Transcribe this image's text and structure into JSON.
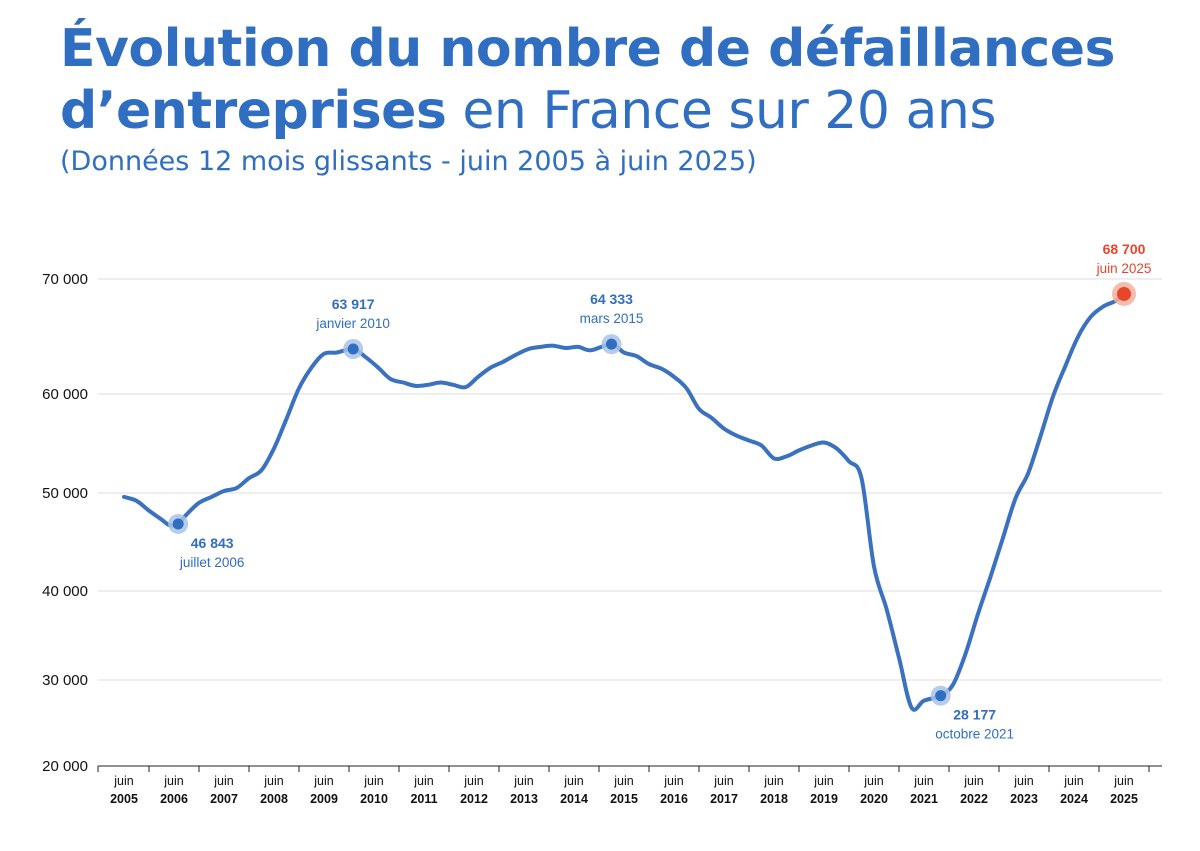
{
  "header": {
    "title_bold_1": "Évolution du nombre de défaillances",
    "title_bold_2": "d’entreprises",
    "title_light_2": " en France sur 20 ans",
    "subtitle": "(Données 12 mois glissants - juin 2005 à juin 2025)"
  },
  "colors": {
    "line": "#3a72bf",
    "title": "#2f6ec1",
    "annotation": "#2f6ec1",
    "latest": "#e8452a",
    "grid": "#dedede",
    "halo": "#a9c3e8",
    "halo_latest": "#f4b29f"
  },
  "chart_data": {
    "type": "line",
    "title": "Évolution du nombre de défaillances d’entreprises en France sur 20 ans",
    "subtitle": "(Données 12 mois glissants - juin 2005 à juin 2025)",
    "xlabel": "",
    "ylabel": "",
    "y_ticks": [
      {
        "value": 20000,
        "label": "20 000"
      },
      {
        "value": 30000,
        "label": "30 000"
      },
      {
        "value": 40000,
        "label": "40 000"
      },
      {
        "value": 50000,
        "label": "50 000"
      },
      {
        "value": 60000,
        "label": "60 000"
      },
      {
        "value": 70000,
        "label": "70 000"
      }
    ],
    "x_ticks": [
      {
        "date": "2005-06",
        "month": "juin",
        "year": "2005"
      },
      {
        "date": "2006-06",
        "month": "juin",
        "year": "2006"
      },
      {
        "date": "2007-06",
        "month": "juin",
        "year": "2007"
      },
      {
        "date": "2008-06",
        "month": "juin",
        "year": "2008"
      },
      {
        "date": "2009-06",
        "month": "juin",
        "year": "2009"
      },
      {
        "date": "2010-06",
        "month": "juin",
        "year": "2010"
      },
      {
        "date": "2011-06",
        "month": "juin",
        "year": "2011"
      },
      {
        "date": "2012-06",
        "month": "juin",
        "year": "2012"
      },
      {
        "date": "2013-06",
        "month": "juin",
        "year": "2013"
      },
      {
        "date": "2014-06",
        "month": "juin",
        "year": "2014"
      },
      {
        "date": "2015-06",
        "month": "juin",
        "year": "2015"
      },
      {
        "date": "2016-06",
        "month": "juin",
        "year": "2016"
      },
      {
        "date": "2017-06",
        "month": "juin",
        "year": "2017"
      },
      {
        "date": "2018-06",
        "month": "juin",
        "year": "2018"
      },
      {
        "date": "2019-06",
        "month": "juin",
        "year": "2019"
      },
      {
        "date": "2020-06",
        "month": "juin",
        "year": "2020"
      },
      {
        "date": "2021-06",
        "month": "juin",
        "year": "2021"
      },
      {
        "date": "2022-06",
        "month": "juin",
        "year": "2022"
      },
      {
        "date": "2023-06",
        "month": "juin",
        "year": "2023"
      },
      {
        "date": "2024-06",
        "month": "juin",
        "year": "2024"
      },
      {
        "date": "2025-06",
        "month": "juin",
        "year": "2025"
      }
    ],
    "series": [
      {
        "points": [
          [
            "2005-06",
            49600
          ],
          [
            "2005-09",
            49200
          ],
          [
            "2005-12",
            48200
          ],
          [
            "2006-03",
            47300
          ],
          [
            "2006-05",
            46700
          ],
          [
            "2006-07",
            46843
          ],
          [
            "2006-09",
            47800
          ],
          [
            "2006-12",
            49000
          ],
          [
            "2007-03",
            49600
          ],
          [
            "2007-06",
            50200
          ],
          [
            "2007-09",
            50500
          ],
          [
            "2007-12",
            51500
          ],
          [
            "2008-03",
            52300
          ],
          [
            "2008-06",
            54500
          ],
          [
            "2008-09",
            57500
          ],
          [
            "2008-12",
            60500
          ],
          [
            "2009-03",
            62300
          ],
          [
            "2009-06",
            63500
          ],
          [
            "2009-09",
            63600
          ],
          [
            "2010-01",
            63917
          ],
          [
            "2010-04",
            63200
          ],
          [
            "2010-07",
            62300
          ],
          [
            "2010-10",
            61300
          ],
          [
            "2011-01",
            61000
          ],
          [
            "2011-04",
            60700
          ],
          [
            "2011-07",
            60800
          ],
          [
            "2011-10",
            61000
          ],
          [
            "2012-01",
            60800
          ],
          [
            "2012-04",
            60600
          ],
          [
            "2012-07",
            61500
          ],
          [
            "2012-10",
            62300
          ],
          [
            "2013-01",
            62800
          ],
          [
            "2013-04",
            63400
          ],
          [
            "2013-07",
            63900
          ],
          [
            "2013-10",
            64100
          ],
          [
            "2014-01",
            64200
          ],
          [
            "2014-04",
            64000
          ],
          [
            "2014-07",
            64100
          ],
          [
            "2014-10",
            63800
          ],
          [
            "2015-03",
            64333
          ],
          [
            "2015-06",
            63600
          ],
          [
            "2015-09",
            63300
          ],
          [
            "2015-12",
            62600
          ],
          [
            "2016-03",
            62200
          ],
          [
            "2016-06",
            61500
          ],
          [
            "2016-09",
            60500
          ],
          [
            "2016-12",
            58500
          ],
          [
            "2017-03",
            57600
          ],
          [
            "2017-06",
            56500
          ],
          [
            "2017-09",
            55800
          ],
          [
            "2017-12",
            55300
          ],
          [
            "2018-03",
            54800
          ],
          [
            "2018-06",
            53500
          ],
          [
            "2018-09",
            53700
          ],
          [
            "2018-12",
            54300
          ],
          [
            "2019-03",
            54800
          ],
          [
            "2019-06",
            55100
          ],
          [
            "2019-09",
            54500
          ],
          [
            "2019-12",
            53200
          ],
          [
            "2020-03",
            51500
          ],
          [
            "2020-06",
            42500
          ],
          [
            "2020-09",
            38000
          ],
          [
            "2020-12",
            32500
          ],
          [
            "2021-03",
            26800
          ],
          [
            "2021-06",
            27600
          ],
          [
            "2021-10",
            28177
          ],
          [
            "2022-01",
            29500
          ],
          [
            "2022-04",
            33000
          ],
          [
            "2022-07",
            37500
          ],
          [
            "2022-10",
            41500
          ],
          [
            "2023-01",
            45500
          ],
          [
            "2023-04",
            49500
          ],
          [
            "2023-07",
            52000
          ],
          [
            "2023-10",
            55800
          ],
          [
            "2024-01",
            59800
          ],
          [
            "2024-04",
            62500
          ],
          [
            "2024-07",
            65000
          ],
          [
            "2024-10",
            66700
          ],
          [
            "2025-01",
            67600
          ],
          [
            "2025-04",
            68100
          ],
          [
            "2025-06",
            68700
          ]
        ]
      }
    ],
    "annotations": [
      {
        "date": "2006-07",
        "value": 46843,
        "value_label": "46 843",
        "date_label": "juillet 2006",
        "position": "below-right"
      },
      {
        "date": "2010-01",
        "value": 63917,
        "value_label": "63 917",
        "date_label": "janvier 2010",
        "position": "above"
      },
      {
        "date": "2015-03",
        "value": 64333,
        "value_label": "64 333",
        "date_label": "mars 2015",
        "position": "above"
      },
      {
        "date": "2021-10",
        "value": 28177,
        "value_label": "28 177",
        "date_label": "octobre 2021",
        "position": "below-right"
      },
      {
        "date": "2025-06",
        "value": 68700,
        "value_label": "68 700",
        "date_label": "juin 2025",
        "position": "above",
        "highlight": "latest"
      }
    ],
    "grid": true,
    "legend": "none"
  }
}
